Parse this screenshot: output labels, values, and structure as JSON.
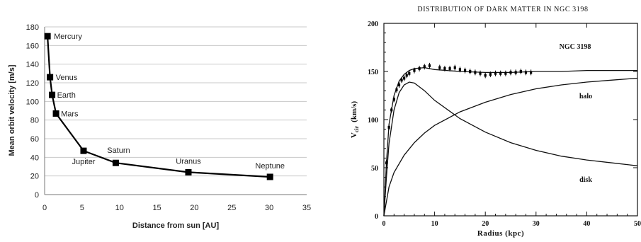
{
  "chart_data": [
    {
      "type": "line",
      "title": "",
      "xlabel": "Distance from sun [AU]",
      "ylabel": "Mean orbit velocity [m/s]",
      "xlim": [
        0,
        35
      ],
      "ylim": [
        0,
        180
      ],
      "xticks": [
        0,
        5,
        10,
        15,
        20,
        25,
        30,
        35
      ],
      "yticks": [
        0,
        20,
        40,
        60,
        80,
        100,
        120,
        140,
        160,
        180
      ],
      "grid": "horizontal",
      "points": [
        {
          "name": "Mercury",
          "x": 0.39,
          "y": 170
        },
        {
          "name": "Venus",
          "x": 0.72,
          "y": 126
        },
        {
          "name": "Earth",
          "x": 1.0,
          "y": 107
        },
        {
          "name": "Mars",
          "x": 1.52,
          "y": 87
        },
        {
          "name": "Jupiter",
          "x": 5.2,
          "y": 47
        },
        {
          "name": "Saturn",
          "x": 9.5,
          "y": 34
        },
        {
          "name": "Uranus",
          "x": 19.2,
          "y": 24
        },
        {
          "name": "Neptune",
          "x": 30.1,
          "y": 19
        }
      ]
    },
    {
      "type": "line",
      "title": "DISTRIBUTION OF DARK MATTER IN NGC 3198",
      "xlabel": "Radius  (kpc)",
      "ylabel": "V_cir (km/s)",
      "ylabel_main": "V",
      "ylabel_sub": "cir",
      "ylabel_unit": "(km/s)",
      "annotation": "NGC 3198",
      "xlim": [
        0,
        50
      ],
      "ylim": [
        0,
        200
      ],
      "xticks": [
        0,
        10,
        20,
        30,
        40,
        50
      ],
      "yticks": [
        0,
        50,
        100,
        150,
        200
      ],
      "series": [
        {
          "name": "halo",
          "x": [
            0,
            1,
            2,
            4,
            6,
            8,
            10,
            15,
            20,
            25,
            30,
            35,
            40,
            45,
            50
          ],
          "y": [
            0,
            30,
            45,
            63,
            76,
            86,
            94,
            108,
            118,
            126,
            132,
            136,
            139,
            141,
            143
          ]
        },
        {
          "name": "disk",
          "x": [
            0,
            0.5,
            1,
            2,
            3,
            4,
            5,
            6,
            8,
            10,
            15,
            20,
            25,
            30,
            35,
            40,
            45,
            50
          ],
          "y": [
            0,
            40,
            75,
            110,
            128,
            136,
            139,
            138,
            130,
            120,
            101,
            87,
            76,
            68,
            62,
            58,
            55,
            52
          ]
        },
        {
          "name": "",
          "x": [
            0,
            0.5,
            1,
            2,
            3,
            4,
            5,
            6,
            8,
            10,
            15,
            20,
            25,
            30,
            35,
            40,
            45,
            50
          ],
          "y": [
            0,
            55,
            95,
            125,
            140,
            147,
            151,
            153,
            154,
            152,
            150,
            149,
            149,
            150,
            150,
            151,
            151,
            151
          ]
        }
      ],
      "observations": {
        "x": [
          0.5,
          1,
          1.5,
          2,
          2.5,
          3,
          3.5,
          4,
          4.5,
          5,
          6,
          7,
          8,
          9,
          11,
          12,
          13,
          14,
          15,
          16,
          17,
          18,
          19,
          20,
          21,
          22,
          23,
          24,
          25,
          26,
          27,
          28,
          29
        ],
        "y": [
          55,
          92,
          110,
          121,
          131,
          136,
          141,
          143,
          146,
          148,
          151,
          153,
          155,
          156,
          154,
          153,
          153,
          154,
          152,
          151,
          150,
          149,
          148,
          146,
          147,
          148,
          148,
          148,
          149,
          149,
          150,
          149,
          149
        ]
      }
    }
  ]
}
